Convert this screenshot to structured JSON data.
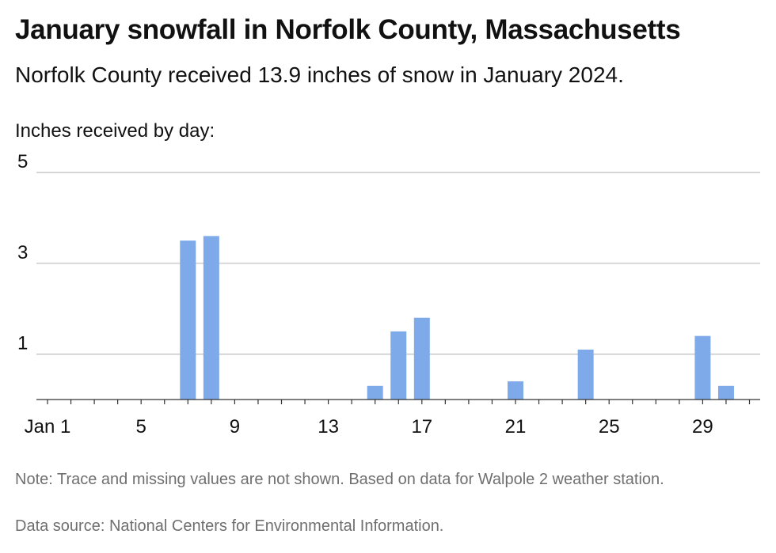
{
  "header": {
    "title": "January snowfall in Norfolk County, Massachusetts",
    "subtitle": "Norfolk County received 13.9 inches of snow in January 2024.",
    "unit_label": "Inches received by day:"
  },
  "footer": {
    "note": "Note: Trace and missing values are not shown. Based on data for Walpole 2 weather station.",
    "source": "Data source: National Centers for Environmental Information."
  },
  "colors": {
    "bar": "#7eaaea",
    "grid": "#bdbdbd",
    "baseline": "#333333"
  },
  "chart_data": {
    "type": "bar",
    "title": "January snowfall in Norfolk County, Massachusetts",
    "ylabel": "Inches received by day:",
    "xlim": [
      1,
      31
    ],
    "ylim": [
      0,
      5
    ],
    "grid": true,
    "x_ticks": [
      1,
      5,
      9,
      13,
      17,
      21,
      25,
      29
    ],
    "x_tick_labels": [
      "Jan 1",
      "5",
      "9",
      "13",
      "17",
      "21",
      "25",
      "29"
    ],
    "y_ticks": [
      1,
      3,
      5
    ],
    "y_tick_labels": [
      "1",
      "3",
      "5"
    ],
    "x": [
      7,
      8,
      15,
      16,
      17,
      21,
      24,
      29,
      30
    ],
    "values": [
      3.5,
      3.6,
      0.3,
      1.5,
      1.8,
      0.4,
      1.1,
      1.4,
      0.3
    ]
  }
}
